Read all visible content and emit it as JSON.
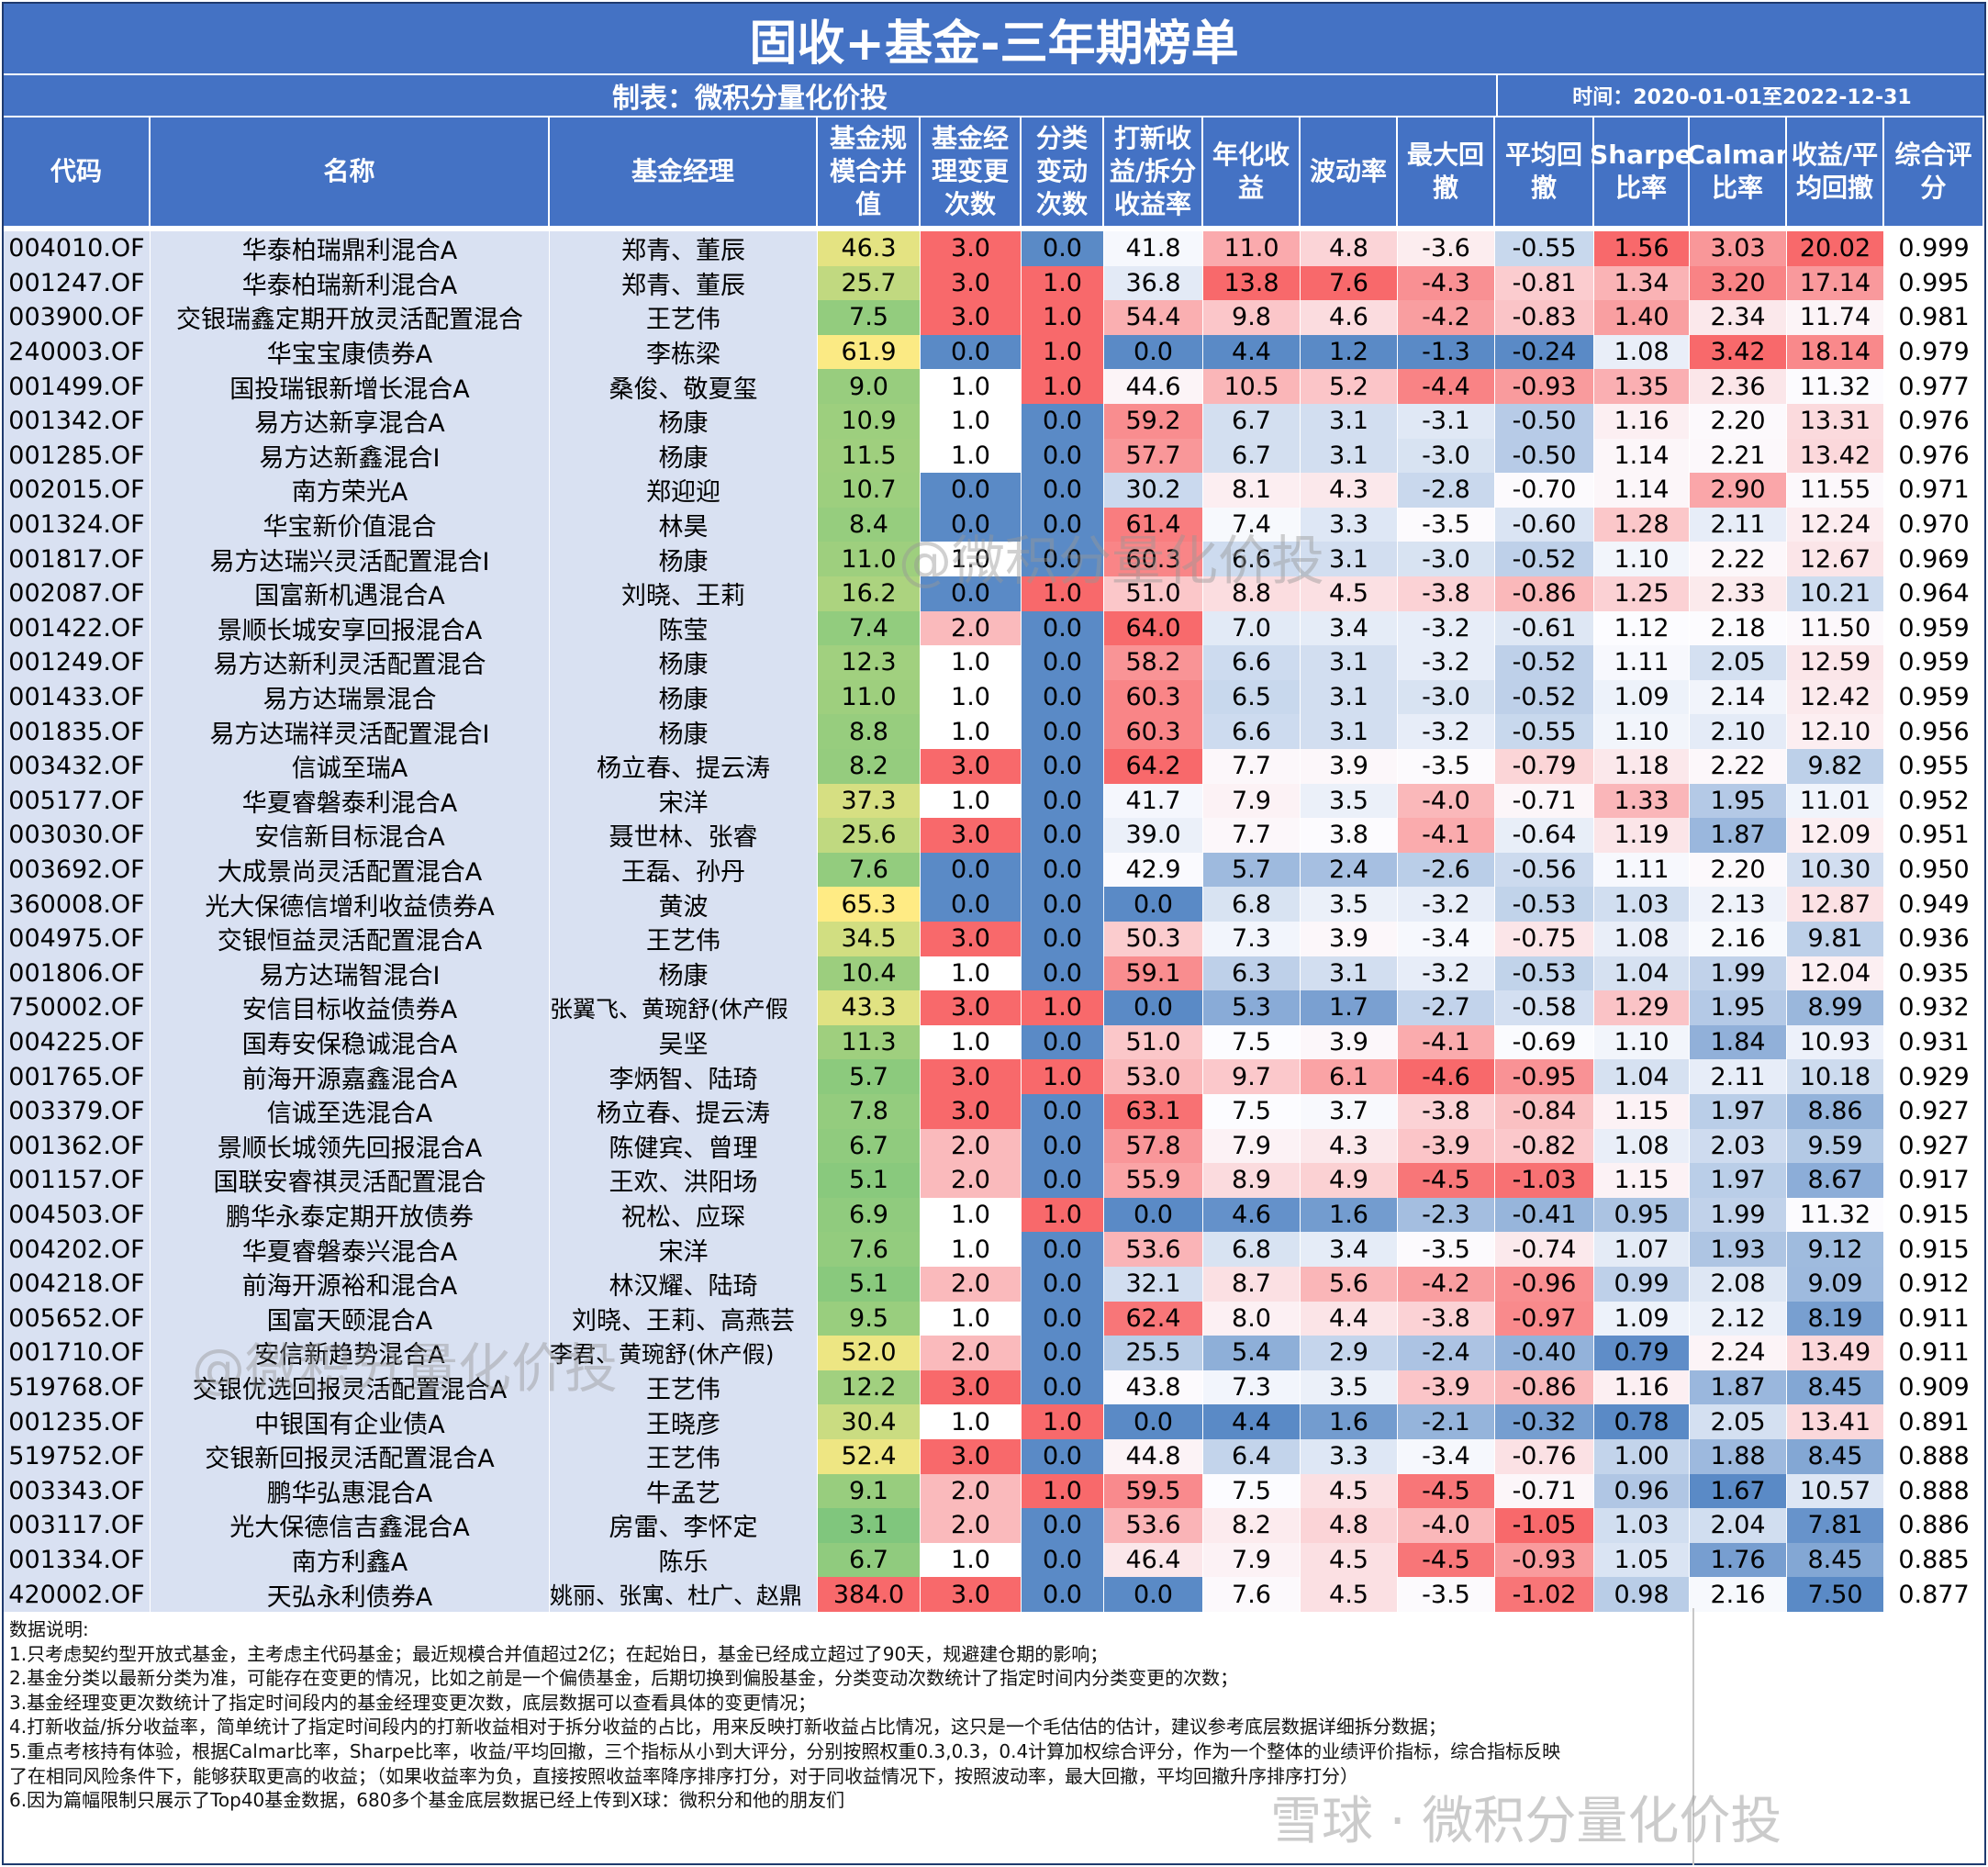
{
  "title": "固收+基金-三年期榜单",
  "maker": "制表：微积分量化价投",
  "period": "时间：2020-01-01至2022-12-31",
  "columns": [
    "代码",
    "名称",
    "基金经理",
    "基金规模合并值",
    "基金经理变更次数",
    "分类变动次数",
    "打新收益/拆分收益率",
    "年化收益",
    "波动率",
    "最大回撤",
    "平均回撤",
    "Sharpe比率",
    "Calmar比率",
    "收益/平均回撤",
    "综合评分"
  ],
  "rows": [
    [
      "004010.OF",
      "华泰柏瑞鼎利混合A",
      "郑青、董辰",
      "46.3",
      "3.0",
      "0.0",
      "41.8",
      "11.0",
      "4.8",
      "-3.6",
      "-0.55",
      "1.56",
      "3.03",
      "20.02",
      "0.999"
    ],
    [
      "001247.OF",
      "华泰柏瑞新利混合A",
      "郑青、董辰",
      "25.7",
      "3.0",
      "1.0",
      "36.8",
      "13.8",
      "7.6",
      "-4.3",
      "-0.81",
      "1.34",
      "3.20",
      "17.14",
      "0.995"
    ],
    [
      "003900.OF",
      "交银瑞鑫定期开放灵活配置混合",
      "王艺伟",
      "7.5",
      "3.0",
      "1.0",
      "54.4",
      "9.8",
      "4.6",
      "-4.2",
      "-0.83",
      "1.40",
      "2.34",
      "11.74",
      "0.981"
    ],
    [
      "240003.OF",
      "华宝宝康债券A",
      "李栋梁",
      "61.9",
      "0.0",
      "1.0",
      "0.0",
      "4.4",
      "1.2",
      "-1.3",
      "-0.24",
      "1.08",
      "3.42",
      "18.14",
      "0.979"
    ],
    [
      "001499.OF",
      "国投瑞银新增长混合A",
      "桑俊、敬夏玺",
      "9.0",
      "1.0",
      "1.0",
      "44.6",
      "10.5",
      "5.2",
      "-4.4",
      "-0.93",
      "1.35",
      "2.36",
      "11.32",
      "0.977"
    ],
    [
      "001342.OF",
      "易方达新享混合A",
      "杨康",
      "10.9",
      "1.0",
      "0.0",
      "59.2",
      "6.7",
      "3.1",
      "-3.1",
      "-0.50",
      "1.16",
      "2.20",
      "13.31",
      "0.976"
    ],
    [
      "001285.OF",
      "易方达新鑫混合I",
      "杨康",
      "11.5",
      "1.0",
      "0.0",
      "57.7",
      "6.7",
      "3.1",
      "-3.0",
      "-0.50",
      "1.14",
      "2.21",
      "13.42",
      "0.976"
    ],
    [
      "002015.OF",
      "南方荣光A",
      "郑迎迎",
      "10.7",
      "0.0",
      "0.0",
      "30.2",
      "8.1",
      "4.3",
      "-2.8",
      "-0.70",
      "1.14",
      "2.90",
      "11.55",
      "0.971"
    ],
    [
      "001324.OF",
      "华宝新价值混合",
      "林昊",
      "8.4",
      "0.0",
      "0.0",
      "61.4",
      "7.4",
      "3.3",
      "-3.5",
      "-0.60",
      "1.28",
      "2.11",
      "12.24",
      "0.970"
    ],
    [
      "001817.OF",
      "易方达瑞兴灵活配置混合I",
      "杨康",
      "11.0",
      "1.0",
      "0.0",
      "60.3",
      "6.6",
      "3.1",
      "-3.0",
      "-0.52",
      "1.10",
      "2.22",
      "12.67",
      "0.969"
    ],
    [
      "002087.OF",
      "国富新机遇混合A",
      "刘晓、王莉",
      "16.2",
      "0.0",
      "1.0",
      "51.0",
      "8.8",
      "4.5",
      "-3.8",
      "-0.86",
      "1.25",
      "2.33",
      "10.21",
      "0.964"
    ],
    [
      "001422.OF",
      "景顺长城安享回报混合A",
      "陈莹",
      "7.4",
      "2.0",
      "0.0",
      "64.0",
      "7.0",
      "3.4",
      "-3.2",
      "-0.61",
      "1.12",
      "2.18",
      "11.50",
      "0.959"
    ],
    [
      "001249.OF",
      "易方达新利灵活配置混合",
      "杨康",
      "12.3",
      "1.0",
      "0.0",
      "58.2",
      "6.6",
      "3.1",
      "-3.2",
      "-0.52",
      "1.11",
      "2.05",
      "12.59",
      "0.959"
    ],
    [
      "001433.OF",
      "易方达瑞景混合",
      "杨康",
      "11.0",
      "1.0",
      "0.0",
      "60.3",
      "6.5",
      "3.1",
      "-3.0",
      "-0.52",
      "1.09",
      "2.14",
      "12.42",
      "0.959"
    ],
    [
      "001835.OF",
      "易方达瑞祥灵活配置混合I",
      "杨康",
      "8.8",
      "1.0",
      "0.0",
      "60.3",
      "6.6",
      "3.1",
      "-3.2",
      "-0.55",
      "1.10",
      "2.10",
      "12.10",
      "0.956"
    ],
    [
      "003432.OF",
      "信诚至瑞A",
      "杨立春、提云涛",
      "8.2",
      "3.0",
      "0.0",
      "64.2",
      "7.7",
      "3.9",
      "-3.5",
      "-0.79",
      "1.18",
      "2.22",
      "9.82",
      "0.955"
    ],
    [
      "005177.OF",
      "华夏睿磐泰利混合A",
      "宋洋",
      "37.3",
      "1.0",
      "0.0",
      "41.7",
      "7.9",
      "3.5",
      "-4.0",
      "-0.71",
      "1.33",
      "1.95",
      "11.01",
      "0.952"
    ],
    [
      "003030.OF",
      "安信新目标混合A",
      "聂世林、张睿",
      "25.6",
      "3.0",
      "0.0",
      "39.0",
      "7.7",
      "3.8",
      "-4.1",
      "-0.64",
      "1.19",
      "1.87",
      "12.09",
      "0.951"
    ],
    [
      "003692.OF",
      "大成景尚灵活配置混合A",
      "王磊、孙丹",
      "7.6",
      "0.0",
      "0.0",
      "42.9",
      "5.7",
      "2.4",
      "-2.6",
      "-0.56",
      "1.11",
      "2.20",
      "10.30",
      "0.950"
    ],
    [
      "360008.OF",
      "光大保德信增利收益债券A",
      "黄波",
      "65.3",
      "0.0",
      "0.0",
      "0.0",
      "6.8",
      "3.5",
      "-3.2",
      "-0.53",
      "1.03",
      "2.13",
      "12.87",
      "0.949"
    ],
    [
      "004975.OF",
      "交银恒益灵活配置混合A",
      "王艺伟",
      "34.5",
      "3.0",
      "0.0",
      "50.3",
      "7.3",
      "3.9",
      "-3.4",
      "-0.75",
      "1.08",
      "2.16",
      "9.81",
      "0.936"
    ],
    [
      "001806.OF",
      "易方达瑞智混合I",
      "杨康",
      "10.4",
      "1.0",
      "0.0",
      "59.1",
      "6.3",
      "3.1",
      "-3.2",
      "-0.53",
      "1.04",
      "1.99",
      "12.04",
      "0.935"
    ],
    [
      "750002.OF",
      "安信目标收益债券A",
      "张翼飞、黄琬舒(休产假",
      "43.3",
      "3.0",
      "1.0",
      "0.0",
      "5.3",
      "1.7",
      "-2.7",
      "-0.58",
      "1.29",
      "1.95",
      "8.99",
      "0.932"
    ],
    [
      "004225.OF",
      "国寿安保稳诚混合A",
      "吴坚",
      "11.3",
      "1.0",
      "0.0",
      "51.0",
      "7.5",
      "3.9",
      "-4.1",
      "-0.69",
      "1.10",
      "1.84",
      "10.93",
      "0.931"
    ],
    [
      "001765.OF",
      "前海开源嘉鑫混合A",
      "李炳智、陆琦",
      "5.7",
      "3.0",
      "1.0",
      "53.0",
      "9.7",
      "6.1",
      "-4.6",
      "-0.95",
      "1.04",
      "2.11",
      "10.18",
      "0.929"
    ],
    [
      "003379.OF",
      "信诚至选混合A",
      "杨立春、提云涛",
      "7.8",
      "3.0",
      "0.0",
      "63.1",
      "7.5",
      "3.7",
      "-3.8",
      "-0.84",
      "1.15",
      "1.97",
      "8.86",
      "0.927"
    ],
    [
      "001362.OF",
      "景顺长城领先回报混合A",
      "陈健宾、曾理",
      "6.7",
      "2.0",
      "0.0",
      "57.8",
      "7.9",
      "4.3",
      "-3.9",
      "-0.82",
      "1.08",
      "2.03",
      "9.59",
      "0.927"
    ],
    [
      "001157.OF",
      "国联安睿祺灵活配置混合",
      "王欢、洪阳场",
      "5.1",
      "2.0",
      "0.0",
      "55.9",
      "8.9",
      "4.9",
      "-4.5",
      "-1.03",
      "1.15",
      "1.97",
      "8.67",
      "0.917"
    ],
    [
      "004503.OF",
      "鹏华永泰定期开放债券",
      "祝松、应琛",
      "6.9",
      "1.0",
      "1.0",
      "0.0",
      "4.6",
      "1.6",
      "-2.3",
      "-0.41",
      "0.95",
      "1.99",
      "11.32",
      "0.915"
    ],
    [
      "004202.OF",
      "华夏睿磐泰兴混合A",
      "宋洋",
      "7.6",
      "1.0",
      "0.0",
      "53.6",
      "6.8",
      "3.4",
      "-3.5",
      "-0.74",
      "1.07",
      "1.93",
      "9.12",
      "0.915"
    ],
    [
      "004218.OF",
      "前海开源裕和混合A",
      "林汉耀、陆琦",
      "5.1",
      "2.0",
      "0.0",
      "32.1",
      "8.7",
      "5.6",
      "-4.2",
      "-0.96",
      "0.99",
      "2.08",
      "9.09",
      "0.912"
    ],
    [
      "005652.OF",
      "国富天颐混合A",
      "刘晓、王莉、高燕芸",
      "9.5",
      "1.0",
      "0.0",
      "62.4",
      "8.0",
      "4.4",
      "-3.8",
      "-0.97",
      "1.09",
      "2.12",
      "8.19",
      "0.911"
    ],
    [
      "001710.OF",
      "安信新趋势混合A",
      "李君、黄琬舒(休产假)",
      "52.0",
      "2.0",
      "0.0",
      "25.5",
      "5.4",
      "2.9",
      "-2.4",
      "-0.40",
      "0.79",
      "2.24",
      "13.49",
      "0.911"
    ],
    [
      "519768.OF",
      "交银优选回报灵活配置混合A",
      "王艺伟",
      "12.2",
      "3.0",
      "0.0",
      "43.8",
      "7.3",
      "3.5",
      "-3.9",
      "-0.86",
      "1.16",
      "1.87",
      "8.45",
      "0.909"
    ],
    [
      "001235.OF",
      "中银国有企业债A",
      "王晓彦",
      "30.4",
      "1.0",
      "1.0",
      "0.0",
      "4.4",
      "1.6",
      "-2.1",
      "-0.32",
      "0.78",
      "2.05",
      "13.41",
      "0.891"
    ],
    [
      "519752.OF",
      "交银新回报灵活配置混合A",
      "王艺伟",
      "52.4",
      "3.0",
      "0.0",
      "44.8",
      "6.4",
      "3.3",
      "-3.4",
      "-0.76",
      "1.00",
      "1.88",
      "8.45",
      "0.888"
    ],
    [
      "003343.OF",
      "鹏华弘惠混合A",
      "牛孟艺",
      "9.1",
      "2.0",
      "1.0",
      "59.5",
      "7.5",
      "4.5",
      "-4.5",
      "-0.71",
      "0.96",
      "1.67",
      "10.57",
      "0.888"
    ],
    [
      "003117.OF",
      "光大保德信吉鑫混合A",
      "房雷、李怀定",
      "3.1",
      "2.0",
      "0.0",
      "53.6",
      "8.2",
      "4.8",
      "-4.0",
      "-1.05",
      "1.03",
      "2.04",
      "7.81",
      "0.886"
    ],
    [
      "001334.OF",
      "南方利鑫A",
      "陈乐",
      "6.7",
      "1.0",
      "0.0",
      "46.4",
      "7.9",
      "4.5",
      "-4.5",
      "-0.93",
      "1.05",
      "1.76",
      "8.45",
      "0.885"
    ],
    [
      "420002.OF",
      "天弘永利债券A",
      "姚丽、张寓、杜广、赵鼎",
      "384.0",
      "3.0",
      "0.0",
      "0.0",
      "7.6",
      "4.5",
      "-3.5",
      "-1.02",
      "0.98",
      "2.16",
      "7.50",
      "0.877"
    ]
  ],
  "notes": [
    "数据说明:",
    "1.只考虑契约型开放式基金，主考虑主代码基金；最近规模合并值超过2亿；在起始日，基金已经成立超过了90天，规避建仓期的影响；",
    "2.基金分类以最新分类为准，可能存在变更的情况，比如之前是一个偏债基金，后期切换到偏股基金，分类变动次数统计了指定时间内分类变更的次数；",
    "3.基金经理变更次数统计了指定时间段内的基金经理变更次数，底层数据可以查看具体的变更情况；",
    "4.打新收益/拆分收益率，简单统计了指定时间段内的打新收益相对于拆分收益的占比，用来反映打新收益占比情况，这只是一个毛估估的估计，建议参考底层数据详细拆分数据；",
    "5.重点考核持有体验，根据Calmar比率，Sharpe比率，收益/平均回撤，三个指标从小到大评分，分别按照权重0.3,0.3，0.4计算加权综合评分，作为一个整体的业绩评价指标，综合指标反映",
    "了在相同风险条件下，能够获取更高的收益；（如果收益率为负，直接按照收益率降序排序打分，对于同收益情况下，按照波动率，最大回撤，平均回撤升序排序打分）",
    "6.因为篇幅限制只展示了Top40基金数据，680多个基金底层数据已经上传到X球：微积分和他的朋友们"
  ],
  "watermarks": [
    "@微积分量化价投",
    "@微积分量化价投",
    "雪球 · 微积分量化价投"
  ]
}
